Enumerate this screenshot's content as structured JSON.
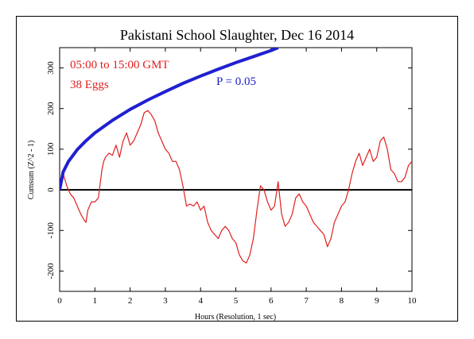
{
  "chart_data": {
    "type": "line",
    "title": "Pakistani School Slaughter, Dec 16 2014",
    "xlabel": "Hours (Resolution, 1 sec)",
    "ylabel": "Cumsum (Z^2 - 1)",
    "xlim": [
      0,
      10
    ],
    "ylim": [
      -250,
      350
    ],
    "x_ticks": [
      0,
      1,
      2,
      3,
      4,
      5,
      6,
      7,
      8,
      9,
      10
    ],
    "y_ticks": [
      -200,
      -100,
      0,
      100,
      200,
      300
    ],
    "annotations": {
      "time_range": "05:00 to 15:00 GMT",
      "eggs": "38 Eggs",
      "p_label": "P = 0.05"
    },
    "colors": {
      "data": "#e02020",
      "envelope": "#2020d0",
      "zero": "#000000"
    },
    "series": [
      {
        "name": "",
        "color": "#e02020",
        "x": [
          0,
          0.1,
          0.2,
          0.3,
          0.4,
          0.5,
          0.6,
          0.7,
          0.75,
          0.8,
          0.9,
          1.0,
          1.1,
          1.2,
          1.25,
          1.3,
          1.4,
          1.5,
          1.6,
          1.7,
          1.8,
          1.9,
          2.0,
          2.1,
          2.2,
          2.3,
          2.4,
          2.5,
          2.6,
          2.7,
          2.8,
          2.9,
          3.0,
          3.1,
          3.2,
          3.3,
          3.4,
          3.5,
          3.6,
          3.7,
          3.8,
          3.9,
          4.0,
          4.1,
          4.2,
          4.3,
          4.4,
          4.5,
          4.6,
          4.7,
          4.8,
          4.9,
          5.0,
          5.1,
          5.2,
          5.3,
          5.4,
          5.5,
          5.6,
          5.7,
          5.8,
          5.9,
          6.0,
          6.1,
          6.2,
          6.3,
          6.4,
          6.5,
          6.6,
          6.7,
          6.8,
          6.9,
          7.0,
          7.1,
          7.2,
          7.3,
          7.4,
          7.5,
          7.6,
          7.7,
          7.8,
          7.9,
          8.0,
          8.1,
          8.2,
          8.3,
          8.4,
          8.5,
          8.6,
          8.7,
          8.8,
          8.9,
          9.0,
          9.1,
          9.2,
          9.3,
          9.4,
          9.5,
          9.6,
          9.7,
          9.8,
          9.9,
          10.0
        ],
        "values": [
          0,
          40,
          10,
          -10,
          -20,
          -40,
          -60,
          -75,
          -80,
          -50,
          -30,
          -30,
          -20,
          50,
          70,
          80,
          90,
          85,
          110,
          80,
          120,
          140,
          110,
          120,
          140,
          160,
          190,
          195,
          185,
          170,
          140,
          120,
          100,
          90,
          70,
          70,
          50,
          10,
          -40,
          -35,
          -40,
          -30,
          -50,
          -40,
          -80,
          -100,
          -110,
          -120,
          -100,
          -90,
          -100,
          -120,
          -130,
          -160,
          -175,
          -180,
          -160,
          -120,
          -50,
          10,
          0,
          -30,
          -50,
          -40,
          20,
          -60,
          -90,
          -80,
          -60,
          -20,
          -10,
          -30,
          -40,
          -60,
          -80,
          -90,
          -100,
          -110,
          -140,
          -120,
          -80,
          -60,
          -40,
          -30,
          0,
          40,
          70,
          90,
          60,
          80,
          100,
          70,
          80,
          120,
          130,
          100,
          50,
          40,
          20,
          20,
          30,
          60,
          70
        ]
      },
      {
        "name": "",
        "color": "#2020d0",
        "x": [
          0,
          0.1,
          0.25,
          0.5,
          0.75,
          1.0,
          1.5,
          2.0,
          2.5,
          3.0,
          3.5,
          4.0,
          4.5,
          5.0,
          5.5,
          6.0,
          6.2
        ],
        "values": [
          0,
          44,
          70,
          99,
          121,
          140,
          171,
          198,
          221,
          242,
          262,
          280,
          297,
          313,
          328,
          343,
          350
        ]
      }
    ]
  }
}
